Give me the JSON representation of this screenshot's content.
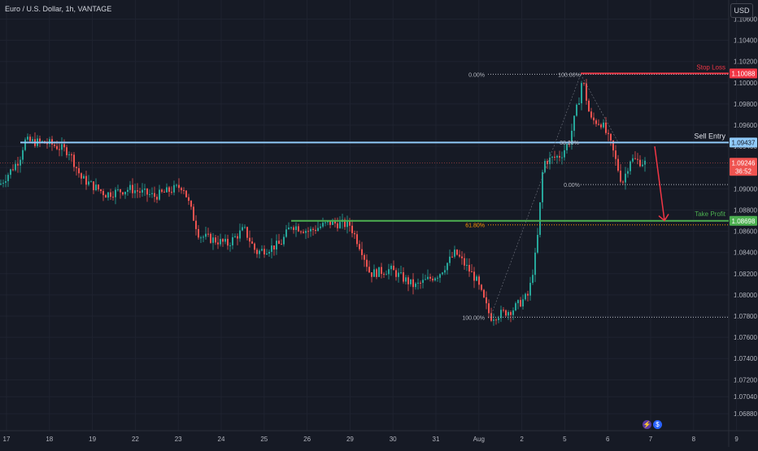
{
  "symbol_title": "Euro / U.S. Dollar, 1h, VANTAGE",
  "currency_button": "USD",
  "icons": [
    "lightning-icon",
    "dollar-circle-icon"
  ],
  "colors": {
    "background": "#161a25",
    "up_candle": "#26a69a",
    "down_candle": "#ef5350",
    "stop_loss": "#f23645",
    "sell_entry": "#90caf9",
    "take_profit": "#4caf50",
    "fib_618": "#ff9800",
    "arrow": "#f23645"
  },
  "chart_data": {
    "type": "candlestick",
    "title": "Euro / U.S. Dollar, 1h, VANTAGE",
    "y_axis": {
      "ticks": [
        "1.10600",
        "1.10400",
        "1.10200",
        "1.10000",
        "1.09800",
        "1.09600",
        "1.09400",
        "1.09200",
        "1.09000",
        "1.08800",
        "1.08600",
        "1.08400",
        "1.08200",
        "1.08000",
        "1.07800",
        "1.07600",
        "1.07400",
        "1.07200",
        "1.07040",
        "1.06880"
      ],
      "tick_values": [
        1.106,
        1.104,
        1.102,
        1.1,
        1.098,
        1.096,
        1.094,
        1.092,
        1.09,
        1.088,
        1.086,
        1.084,
        1.082,
        1.08,
        1.078,
        1.076,
        1.074,
        1.072,
        1.0704,
        1.0688
      ],
      "range": [
        1.0672,
        1.1078
      ]
    },
    "x_axis": {
      "labels": [
        "17",
        "18",
        "19",
        "22",
        "23",
        "24",
        "25",
        "26",
        "29",
        "30",
        "31",
        "Aug",
        "2",
        "5",
        "6",
        "7",
        "8",
        "9"
      ]
    },
    "price_path": [
      {
        "x": 0,
        "y": 1.0904
      },
      {
        "x": 24,
        "y": 1.0928
      },
      {
        "x": 30,
        "y": 1.0945
      },
      {
        "x": 60,
        "y": 1.0943
      },
      {
        "x": 85,
        "y": 1.0935
      },
      {
        "x": 100,
        "y": 1.091
      },
      {
        "x": 130,
        "y": 1.0895
      },
      {
        "x": 160,
        "y": 1.09
      },
      {
        "x": 190,
        "y": 1.0893
      },
      {
        "x": 225,
        "y": 1.0903
      },
      {
        "x": 245,
        "y": 1.0856
      },
      {
        "x": 280,
        "y": 1.0848
      },
      {
        "x": 300,
        "y": 1.0862
      },
      {
        "x": 315,
        "y": 1.084
      },
      {
        "x": 345,
        "y": 1.0848
      },
      {
        "x": 358,
        "y": 1.0866
      },
      {
        "x": 380,
        "y": 1.086
      },
      {
        "x": 405,
        "y": 1.0868
      },
      {
        "x": 430,
        "y": 1.0866
      },
      {
        "x": 445,
        "y": 1.0842
      },
      {
        "x": 455,
        "y": 1.082
      },
      {
        "x": 480,
        "y": 1.0824
      },
      {
        "x": 510,
        "y": 1.0808
      },
      {
        "x": 540,
        "y": 1.082
      },
      {
        "x": 560,
        "y": 1.084
      },
      {
        "x": 585,
        "y": 1.0815
      },
      {
        "x": 603,
        "y": 1.0779
      },
      {
        "x": 630,
        "y": 1.0786
      },
      {
        "x": 650,
        "y": 1.08
      },
      {
        "x": 660,
        "y": 1.0845
      },
      {
        "x": 668,
        "y": 1.0925
      },
      {
        "x": 690,
        "y": 1.0932
      },
      {
        "x": 700,
        "y": 1.0945
      },
      {
        "x": 712,
        "y": 1.0985
      },
      {
        "x": 716,
        "y": 1.1005
      },
      {
        "x": 726,
        "y": 1.0965
      },
      {
        "x": 740,
        "y": 1.0962
      },
      {
        "x": 752,
        "y": 1.094
      },
      {
        "x": 765,
        "y": 1.0905
      },
      {
        "x": 775,
        "y": 1.0928
      },
      {
        "x": 795,
        "y": 1.0924
      }
    ],
    "levels": [
      {
        "name": "Stop Loss",
        "value": "1.10088"
      },
      {
        "name": "Sell Entry",
        "value": "1.09437"
      },
      {
        "name": "Take Profit",
        "value": "1.08698"
      }
    ],
    "current_price": {
      "value": "1.09246",
      "countdown": "36:52"
    },
    "fib_labels": {
      "first": {
        "top": "0.00%",
        "bottom": "100.00%",
        "mid": "61.80%"
      },
      "second": {
        "top": "100.00%",
        "mid": "38.20%",
        "bottom": "0.00%"
      }
    },
    "arrow": {
      "from": 1.094,
      "to": 1.087,
      "direction": "down"
    },
    "grid": true,
    "legend": "none"
  }
}
